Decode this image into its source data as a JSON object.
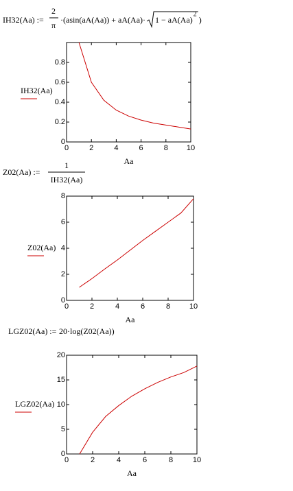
{
  "formulas": [
    {
      "lhs": "IH32(Aa) :=",
      "numerator": "2",
      "denominator": "π",
      "body": "·(asin(aA(Aa)) + aA(Aa)·",
      "radicand": "1 − aA(Aa)",
      "exponent": "2",
      "close": ")"
    },
    {
      "lhs": "Z02(Aa) :=",
      "numerator": "1",
      "denominator": "IH32(Aa)"
    },
    {
      "lhs": "LGZ02(Aa) :=",
      "body": "20·log(Z02(Aa))"
    }
  ],
  "chart_data": [
    {
      "type": "line",
      "xlabel": "Aa",
      "ylabel": "IH32(Aa)",
      "color": "#cc0000",
      "x": [
        1,
        2,
        3,
        4,
        5,
        6,
        7,
        8,
        9,
        10
      ],
      "values": [
        1.0,
        0.6,
        0.42,
        0.32,
        0.26,
        0.22,
        0.19,
        0.17,
        0.15,
        0.13
      ],
      "xlim": [
        0,
        10
      ],
      "xticks": [
        0,
        2,
        4,
        6,
        8,
        10
      ],
      "ylim": [
        0,
        1
      ],
      "yticks": [
        0,
        0.2,
        0.4,
        0.6,
        0.8
      ]
    },
    {
      "type": "line",
      "xlabel": "Aa",
      "ylabel": "Z02(Aa)",
      "color": "#cc0000",
      "x": [
        1,
        2,
        3,
        4,
        5,
        6,
        7,
        8,
        9,
        10
      ],
      "values": [
        1.0,
        1.67,
        2.4,
        3.1,
        3.85,
        4.6,
        5.3,
        6.0,
        6.7,
        7.8
      ],
      "xlim": [
        0,
        10
      ],
      "xticks": [
        0,
        2,
        4,
        6,
        8,
        10
      ],
      "ylim": [
        0,
        8
      ],
      "yticks": [
        0,
        2,
        4,
        6,
        8
      ]
    },
    {
      "type": "line",
      "xlabel": "Aa",
      "ylabel": "LGZ02(Aa)",
      "color": "#cc0000",
      "x": [
        1,
        2,
        3,
        4,
        5,
        6,
        7,
        8,
        9,
        10
      ],
      "values": [
        0,
        4.4,
        7.6,
        9.8,
        11.7,
        13.2,
        14.5,
        15.6,
        16.5,
        17.8
      ],
      "xlim": [
        0,
        10
      ],
      "xticks": [
        0,
        2,
        4,
        6,
        8,
        10
      ],
      "ylim": [
        0,
        20
      ],
      "yticks": [
        0,
        5,
        10,
        15,
        20
      ]
    }
  ]
}
